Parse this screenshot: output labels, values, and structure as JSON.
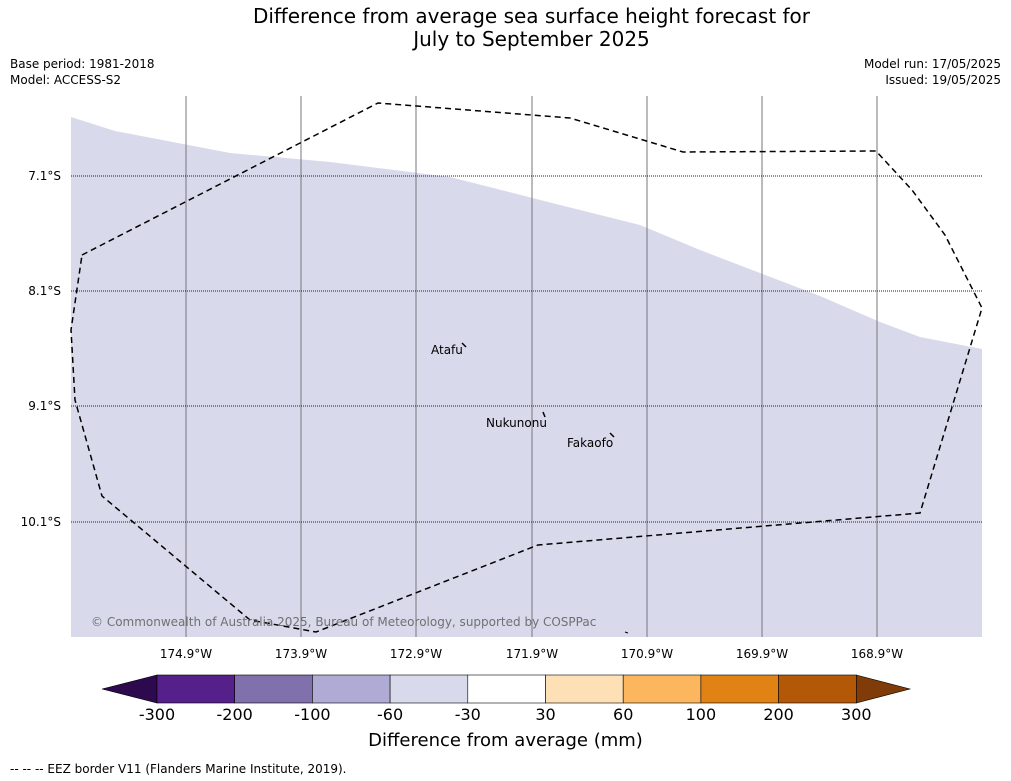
{
  "title_line1": "Difference from average sea surface height forecast for",
  "title_line2": "July to September 2025",
  "meta_left": [
    "Base period: 1981-2018",
    "Model: ACCESS-S2"
  ],
  "meta_right": [
    "Model run: 17/05/2025",
    "Issued: 19/05/2025"
  ],
  "lat_labels": [
    "7.1°S",
    "8.1°S",
    "9.1°S",
    "10.1°S"
  ],
  "lon_labels": [
    "174.9°W",
    "173.9°W",
    "172.9°W",
    "171.9°W",
    "170.9°W",
    "169.9°W",
    "168.9°W"
  ],
  "places": [
    "Atafu",
    "Nukunonu",
    "Fakaofo"
  ],
  "copyright": "© Commonwealth of Australia 2025, Bureau of Meteorology, supported by COSPPac",
  "colorbar": {
    "label": "Difference from average (mm)",
    "ticks": [
      "-300",
      "-200",
      "-100",
      "-60",
      "-30",
      "30",
      "60",
      "100",
      "200",
      "300"
    ],
    "colors": [
      "#2d0a4e",
      "#55208a",
      "#8070ac",
      "#b0abd5",
      "#d8d9eb",
      "#ffffff",
      "#fee0b6",
      "#fbb65e",
      "#e08214",
      "#b35806",
      "#7f3b08"
    ]
  },
  "footer": "--  --  -- EEZ border V11 (Flanders Marine Institute, 2019)."
}
